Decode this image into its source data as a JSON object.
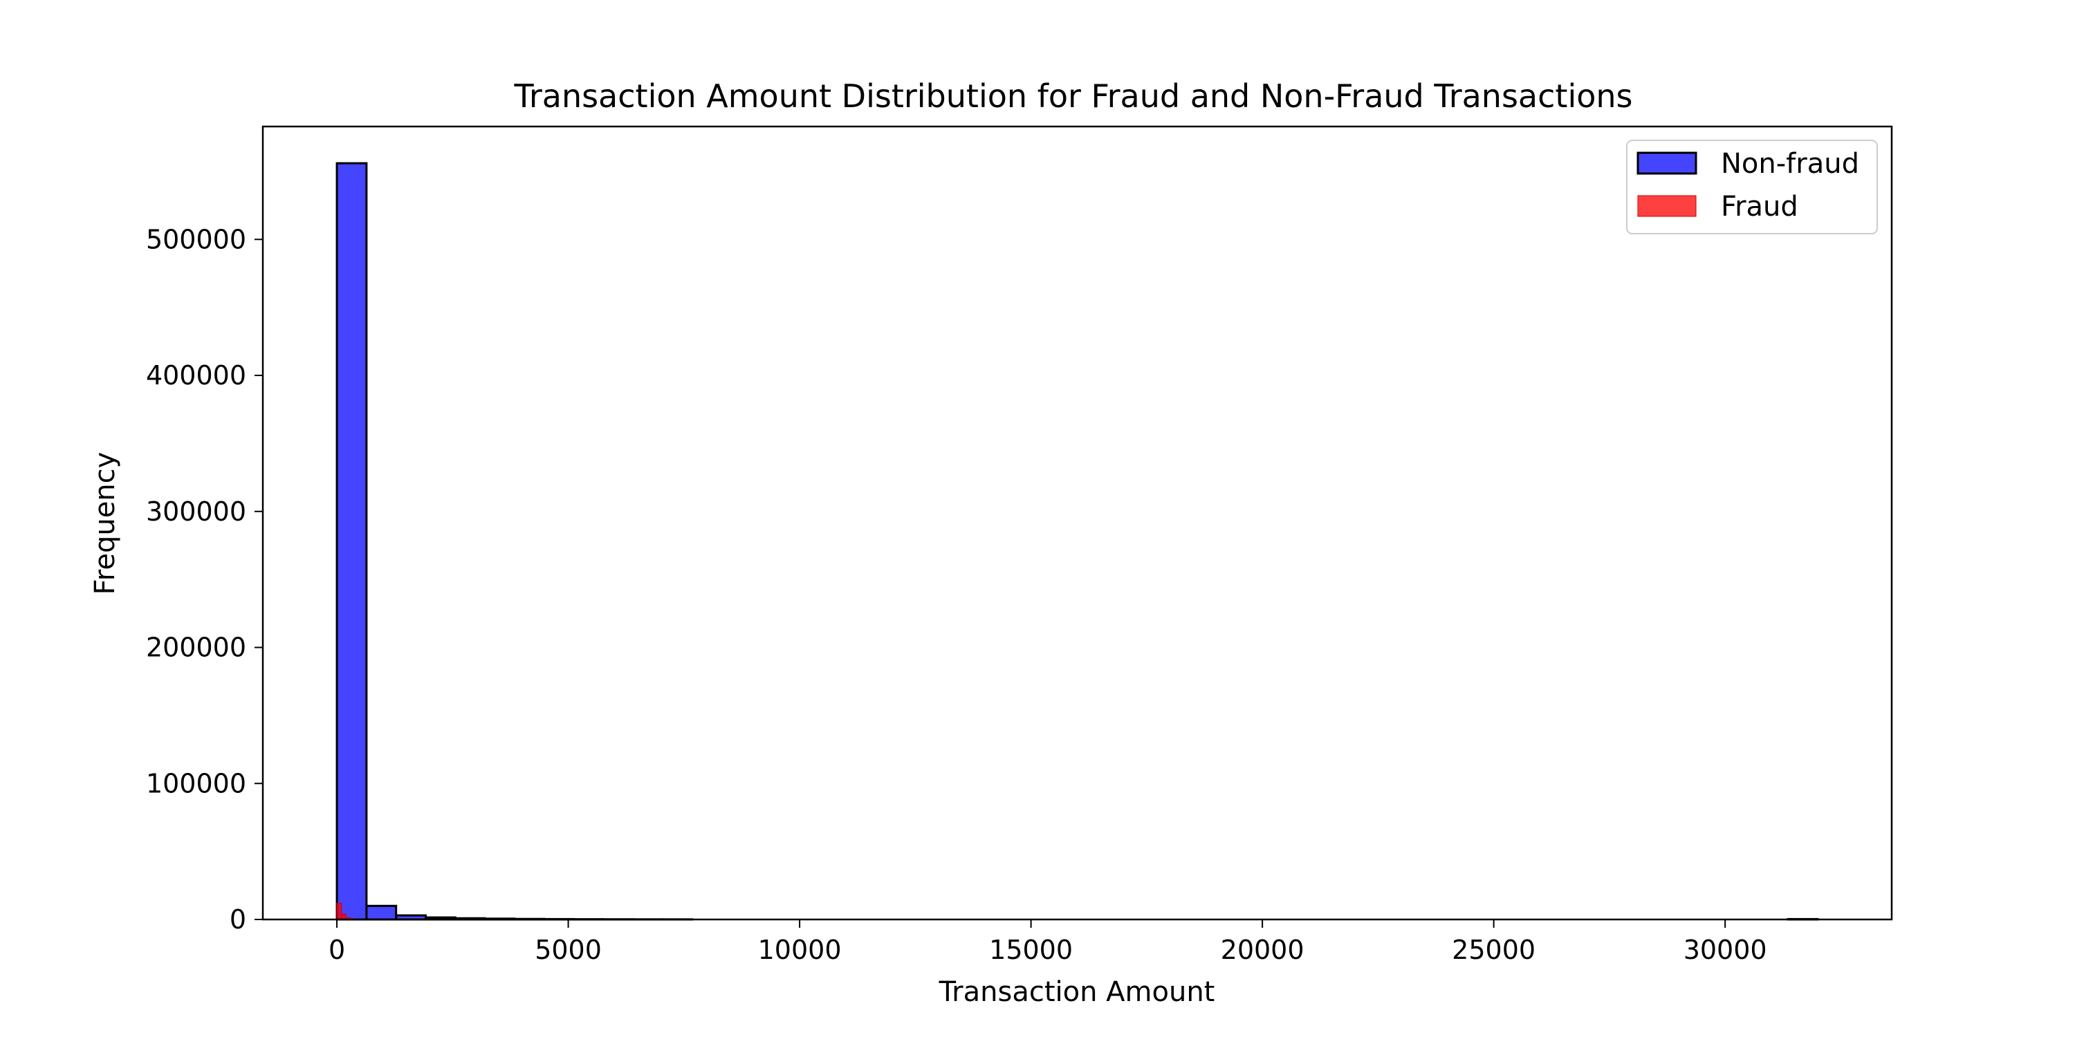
{
  "chart_data": {
    "type": "histogram",
    "title": "Transaction Amount Distribution for Fraud and Non-Fraud Transactions",
    "xlabel": "Transaction Amount",
    "ylabel": "Frequency",
    "xlim": [
      -1600,
      33600
    ],
    "ylim": [
      0,
      583000
    ],
    "x_ticks": [
      0,
      5000,
      10000,
      15000,
      20000,
      25000,
      30000
    ],
    "y_ticks": [
      0,
      100000,
      200000,
      300000,
      400000,
      500000
    ],
    "legend_position": "top-right",
    "grid": false,
    "series": [
      {
        "name": "Non-fraud",
        "color": "#0000ff",
        "alpha": 0.73,
        "edge_color": "#000000",
        "bin_start": 0,
        "bin_width": 640,
        "values": [
          556000,
          10000,
          3000,
          1500,
          900,
          600,
          400,
          300,
          200,
          150,
          100,
          80,
          0,
          0,
          0,
          0,
          0,
          0,
          0,
          0,
          0,
          0,
          0,
          0,
          0,
          0,
          0,
          0,
          0,
          0,
          0,
          0,
          0,
          0,
          0,
          0,
          0,
          0,
          0,
          0,
          0,
          0,
          0,
          0,
          0,
          0,
          0,
          0,
          0,
          300
        ]
      },
      {
        "name": "Fraud",
        "color": "#ff0000",
        "alpha": 0.75,
        "edge_color": "#cc0000",
        "bin_start": 0,
        "bin_width": 100,
        "values": [
          12000,
          4000,
          1200,
          500,
          200,
          100,
          50
        ]
      }
    ]
  }
}
